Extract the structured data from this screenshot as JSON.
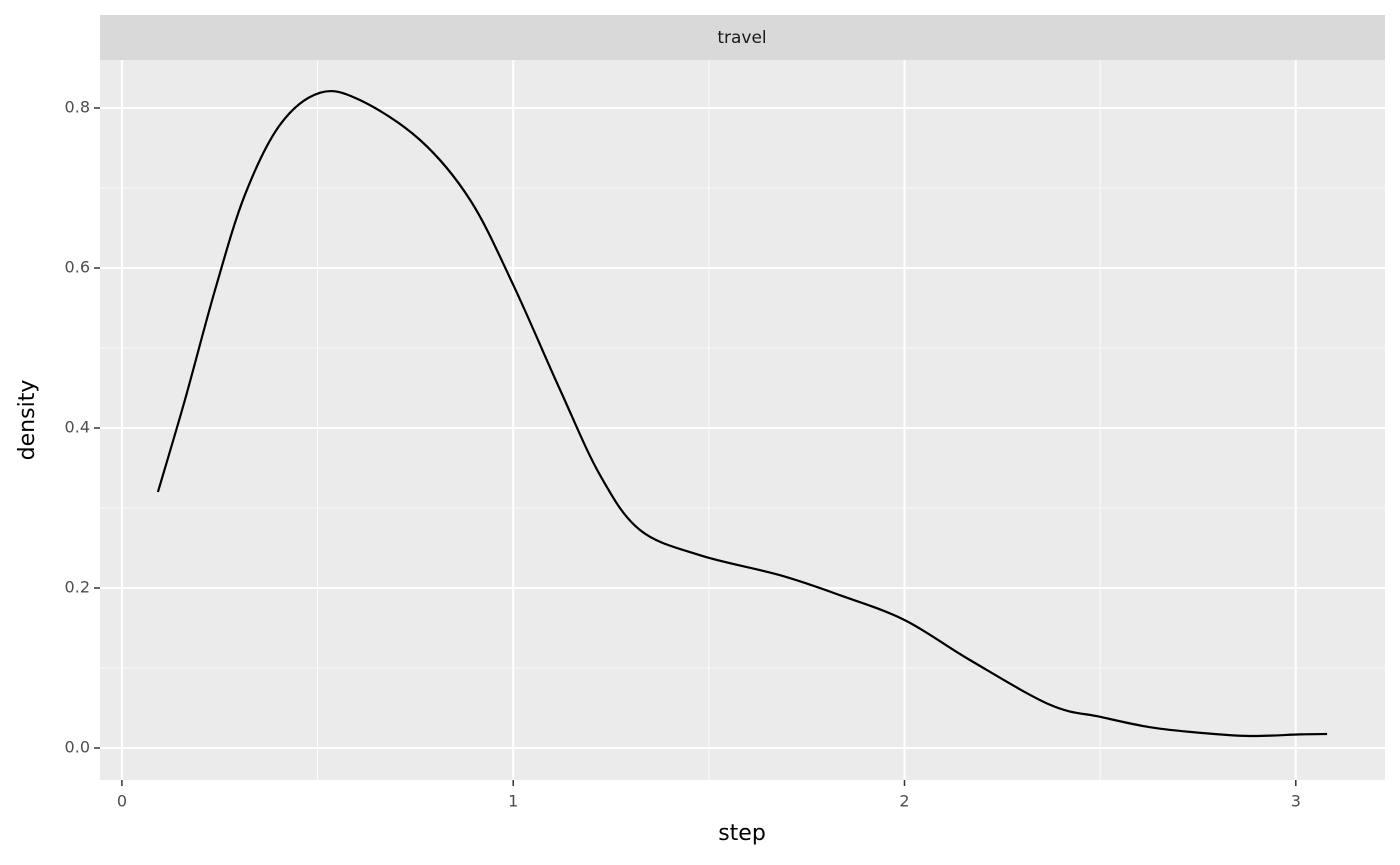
{
  "chart_data": {
    "type": "line",
    "strip": "travel",
    "x_label": "step",
    "y_label": "density",
    "x": [
      0.092,
      0.161,
      0.238,
      0.314,
      0.404,
      0.506,
      0.608,
      0.762,
      0.89,
      1.0,
      1.12,
      1.222,
      1.324,
      1.477,
      1.682,
      1.835,
      2.0,
      2.167,
      2.372,
      2.5,
      2.627,
      2.755,
      2.882,
      3.01,
      3.08
    ],
    "series": [
      {
        "color": "#000000",
        "values": [
          0.32,
          0.435,
          0.5725,
          0.691,
          0.779,
          0.819,
          0.81,
          0.76,
          0.685,
          0.579,
          0.4475,
          0.341,
          0.2725,
          0.241,
          0.216,
          0.191,
          0.16,
          0.11,
          0.054,
          0.039,
          0.026,
          0.019,
          0.015,
          0.017,
          0.0175
        ]
      }
    ],
    "xlim": [
      -0.056,
      3.228
    ],
    "ylim": [
      -0.04,
      0.86
    ],
    "xticks": [
      0,
      1,
      2,
      3
    ],
    "yticks": [
      {
        "value": 0,
        "label": "0.0"
      },
      {
        "value": 0.2,
        "label": "0.2"
      },
      {
        "value": 0.4,
        "label": "0.4"
      },
      {
        "value": 0.6,
        "label": "0.6"
      },
      {
        "value": 0.8,
        "label": "0.8"
      }
    ],
    "xminor": [
      0.5,
      1.5,
      2.5
    ],
    "yminor": [
      0.1,
      0.3,
      0.5,
      0.7
    ],
    "grid": true
  }
}
